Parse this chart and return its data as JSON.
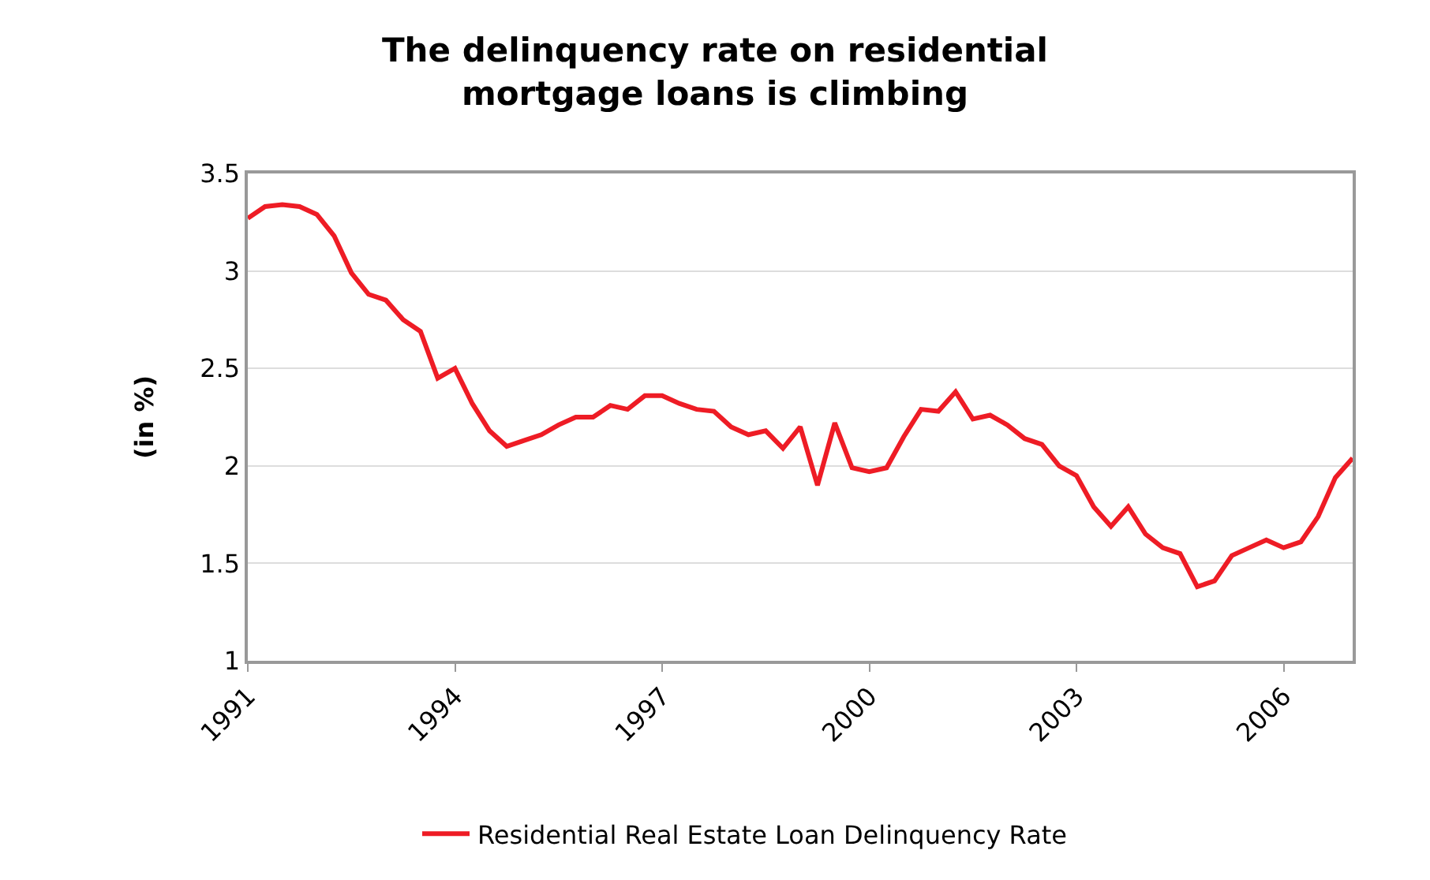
{
  "chart_data": {
    "type": "line",
    "title": "The delinquency rate on residential\nmortgage loans is climbing",
    "ylabel": "(in %)",
    "x": [
      1991,
      1991.25,
      1991.5,
      1991.75,
      1992,
      1992.25,
      1992.5,
      1992.75,
      1993,
      1993.25,
      1993.5,
      1993.75,
      1994,
      1994.25,
      1994.5,
      1994.75,
      1995,
      1995.25,
      1995.5,
      1995.75,
      1996,
      1996.25,
      1996.5,
      1996.75,
      1997,
      1997.25,
      1997.5,
      1997.75,
      1998,
      1998.25,
      1998.5,
      1998.75,
      1999,
      1999.25,
      1999.5,
      1999.75,
      2000,
      2000.25,
      2000.5,
      2000.75,
      2001,
      2001.25,
      2001.5,
      2001.75,
      2002,
      2002.25,
      2002.5,
      2002.75,
      2003,
      2003.25,
      2003.5,
      2003.75,
      2004,
      2004.25,
      2004.5,
      2004.75,
      2005,
      2005.25,
      2005.5,
      2005.75,
      2006,
      2006.25,
      2006.5,
      2006.75,
      2007
    ],
    "series": [
      {
        "name": "Residential Real Estate Loan Delinquency Rate",
        "color": "#ee1c25",
        "values": [
          3.27,
          3.33,
          3.34,
          3.33,
          3.29,
          3.18,
          2.99,
          2.88,
          2.85,
          2.75,
          2.69,
          2.45,
          2.5,
          2.32,
          2.18,
          2.1,
          2.13,
          2.16,
          2.21,
          2.25,
          2.25,
          2.31,
          2.29,
          2.36,
          2.36,
          2.32,
          2.29,
          2.28,
          2.2,
          2.16,
          2.18,
          2.09,
          2.2,
          1.9,
          2.22,
          1.99,
          1.97,
          1.99,
          2.15,
          2.29,
          2.28,
          2.38,
          2.24,
          2.26,
          2.21,
          2.14,
          2.11,
          2.0,
          1.95,
          1.79,
          1.69,
          1.79,
          1.65,
          1.58,
          1.55,
          1.38,
          1.41,
          1.54,
          1.58,
          1.62,
          1.58,
          1.61,
          1.74,
          1.94,
          2.04
        ]
      }
    ],
    "xlim": [
      1991,
      2007
    ],
    "xticks": [
      1991,
      1994,
      1997,
      2000,
      2003,
      2006
    ],
    "ylim": [
      1,
      3.5
    ],
    "yticks": [
      1,
      1.5,
      2,
      2.5,
      3,
      3.5
    ],
    "grid": "y",
    "legend": "bottom",
    "marker": "none",
    "line_style": "solid"
  }
}
